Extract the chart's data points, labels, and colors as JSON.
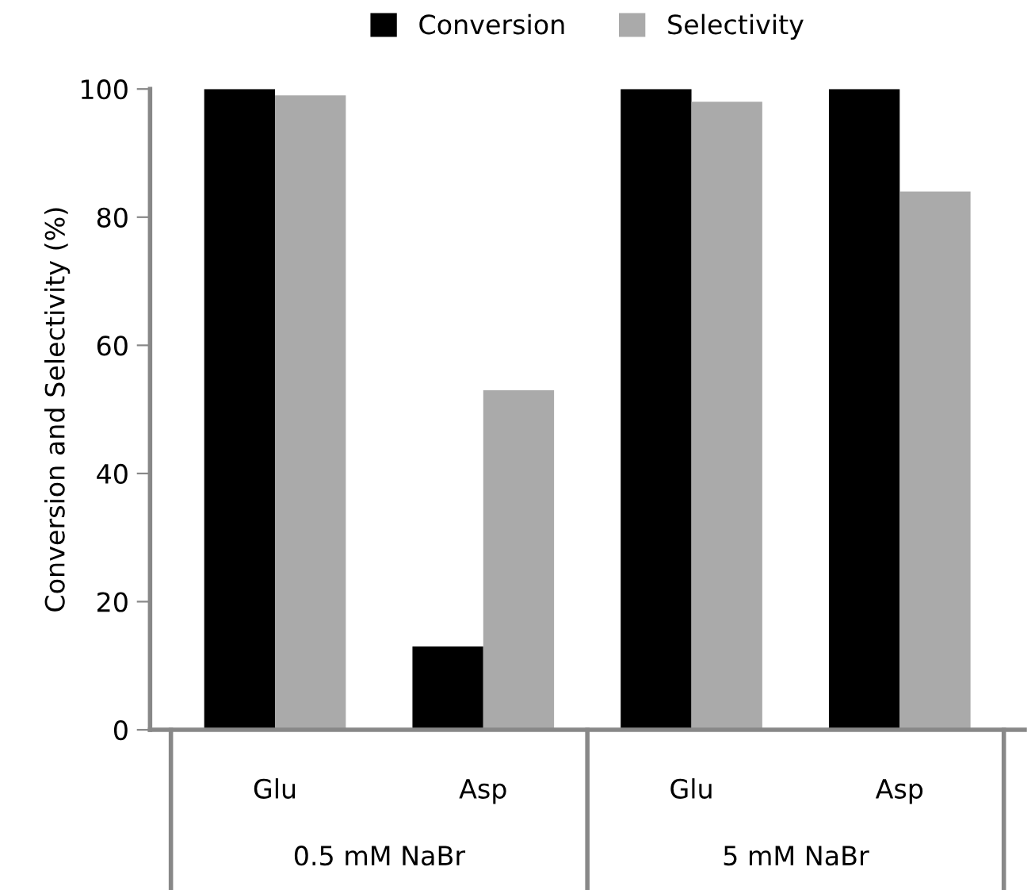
{
  "chart_data": {
    "type": "bar",
    "ylabel": "Conversion and Selectivity (%)",
    "categories": [
      "Glu",
      "Asp",
      "Glu",
      "Asp"
    ],
    "series": [
      {
        "name": "Conversion",
        "color": "#000000",
        "values": [
          100,
          13,
          100,
          100
        ]
      },
      {
        "name": "Selectivity",
        "color": "#aaaaaa",
        "values": [
          99,
          53,
          98,
          84
        ]
      }
    ],
    "ylim": [
      0,
      100
    ],
    "yticks": [
      0,
      20,
      40,
      60,
      80,
      100
    ],
    "grid": false,
    "legend": "top",
    "annotations": [
      "0.5 mM NaBr",
      "5 mM NaBr"
    ]
  }
}
